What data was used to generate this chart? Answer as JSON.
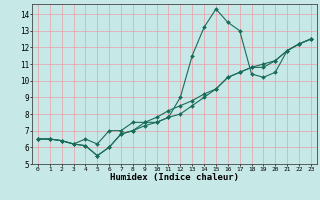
{
  "xlabel": "Humidex (Indice chaleur)",
  "background_color": "#c6e8e6",
  "grid_color": "#e8a0a8",
  "line_color": "#1a6b5a",
  "xlim": [
    -0.5,
    23.5
  ],
  "ylim": [
    5,
    14.6
  ],
  "yticks": [
    5,
    6,
    7,
    8,
    9,
    10,
    11,
    12,
    13,
    14
  ],
  "xticks": [
    0,
    1,
    2,
    3,
    4,
    5,
    6,
    7,
    8,
    9,
    10,
    11,
    12,
    13,
    14,
    15,
    16,
    17,
    18,
    19,
    20,
    21,
    22,
    23
  ],
  "series1": [
    6.5,
    6.5,
    6.4,
    6.2,
    6.1,
    5.5,
    6.0,
    6.8,
    7.0,
    7.5,
    7.5,
    7.8,
    9.0,
    11.5,
    13.2,
    14.3,
    13.5,
    13.0,
    10.4,
    10.2,
    10.5,
    11.8,
    12.2,
    12.5
  ],
  "series2": [
    6.5,
    6.5,
    6.4,
    6.2,
    6.1,
    5.5,
    6.0,
    6.8,
    7.0,
    7.3,
    7.5,
    7.8,
    8.0,
    8.5,
    9.0,
    9.5,
    10.2,
    10.5,
    10.8,
    10.8,
    11.2,
    11.8,
    12.2,
    12.5
  ],
  "series3": [
    6.5,
    6.5,
    6.4,
    6.2,
    6.5,
    6.2,
    7.0,
    7.0,
    7.5,
    7.5,
    7.8,
    8.2,
    8.5,
    8.8,
    9.2,
    9.5,
    10.2,
    10.5,
    10.8,
    11.0,
    11.2,
    11.8,
    12.2,
    12.5
  ]
}
